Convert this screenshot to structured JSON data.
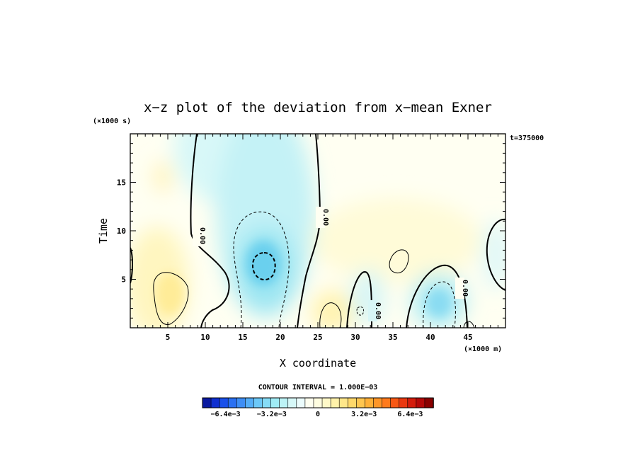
{
  "chart_data": {
    "type": "heatmap",
    "title": "x−z plot of the deviation from x−mean Exner",
    "xlabel": "X coordinate",
    "ylabel": "Time",
    "x_unit": "(×1000 m)",
    "y_unit": "(×1000 s)",
    "time_label": "t=375000",
    "xlim": [
      0,
      50
    ],
    "ylim": [
      0,
      20
    ],
    "x_ticks": [
      5,
      10,
      15,
      20,
      25,
      30,
      35,
      40,
      45
    ],
    "y_ticks": [
      5,
      10,
      15
    ],
    "contour_interval_text": "CONTOUR INTERVAL = 1.000E−03",
    "contour_labels": [
      "0.00",
      "0.00",
      "0.00",
      "0.00"
    ],
    "colorbar": {
      "range": [
        -0.008,
        0.008
      ],
      "tick_labels": [
        "−6.4e−3",
        "−3.2e−3",
        "0",
        "3.2e−3",
        "6.4e−3"
      ],
      "tick_values": [
        -0.0064,
        -0.0032,
        0,
        0.0032,
        0.0064
      ],
      "colors": [
        "#0a1aa0",
        "#0f2fd0",
        "#1a50ea",
        "#2a70f2",
        "#3e8ef5",
        "#55aef7",
        "#6cc8f7",
        "#86dcf6",
        "#a0ecf5",
        "#bcf3f6",
        "#d6f8f8",
        "#ecfcfc",
        "#fffff0",
        "#fffde0",
        "#fff9c8",
        "#fff2aa",
        "#ffe78a",
        "#ffd86a",
        "#ffc650",
        "#ffb038",
        "#ff9628",
        "#ff7a1c",
        "#f85814",
        "#ea3810",
        "#d41c0c",
        "#b40808",
        "#8a0000"
      ]
    }
  }
}
